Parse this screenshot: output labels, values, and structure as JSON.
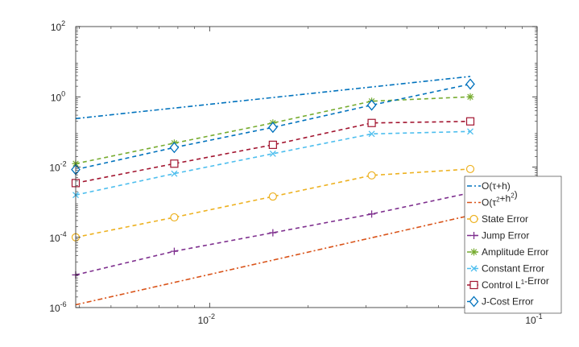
{
  "chart_data": {
    "type": "line",
    "xscale": "log",
    "yscale": "log",
    "xlim": [
      0.0039,
      0.1
    ],
    "ylim": [
      1e-06,
      100
    ],
    "grid": false,
    "legend_position": "bottom-right",
    "x_ticks": [
      {
        "value": 0.01,
        "base": "10",
        "exp": "-2"
      },
      {
        "value": 0.1,
        "base": "10",
        "exp": "-1"
      }
    ],
    "y_ticks": [
      {
        "value": 1e-06,
        "base": "10",
        "exp": "-6"
      },
      {
        "value": 0.0001,
        "base": "10",
        "exp": "-4"
      },
      {
        "value": 0.01,
        "base": "10",
        "exp": "-2"
      },
      {
        "value": 1,
        "base": "10",
        "exp": "0"
      },
      {
        "value": 100,
        "base": "10",
        "exp": "2"
      }
    ],
    "x": [
      0.0039,
      0.0078,
      0.0156,
      0.03125,
      0.0625
    ],
    "series": [
      {
        "name": "O(τ+h)",
        "legend": [
          {
            "t": "O(τ+h)"
          }
        ],
        "color": "#0072bd",
        "dash": "6,3,2,3",
        "marker": "none",
        "x": [
          0.0039,
          0.0625
        ],
        "values": [
          0.24,
          3.8
        ]
      },
      {
        "name": "O(τ²+h²)",
        "legend": [
          {
            "t": "O(τ"
          },
          {
            "t": "2",
            "sup": true
          },
          {
            "t": "+h"
          },
          {
            "t": "2",
            "sup": true
          },
          {
            "t": ")"
          }
        ],
        "color": "#d95319",
        "dash": "6,3,2,3",
        "marker": "none",
        "x": [
          0.0039,
          0.0625
        ],
        "values": [
          1.2e-06,
          0.00042
        ]
      },
      {
        "name": "State Error",
        "legend": [
          {
            "t": "State Error"
          }
        ],
        "color": "#edb120",
        "dash": "5,4",
        "marker": "circle",
        "values": [
          0.0001,
          0.00037,
          0.00145,
          0.0058,
          0.0088
        ]
      },
      {
        "name": "Jump Error",
        "legend": [
          {
            "t": "Jump Error"
          }
        ],
        "color": "#7e2f8e",
        "dash": "5,4",
        "marker": "plus",
        "values": [
          8.5e-06,
          4e-05,
          0.000135,
          0.00046,
          0.00185
        ]
      },
      {
        "name": "Amplitude Error",
        "legend": [
          {
            "t": "Amplitude Error"
          }
        ],
        "color": "#77ac30",
        "dash": "5,4",
        "marker": "star",
        "values": [
          0.0125,
          0.048,
          0.18,
          0.75,
          1.0
        ]
      },
      {
        "name": "Constant Error",
        "legend": [
          {
            "t": "Constant Error"
          }
        ],
        "color": "#4dbeee",
        "dash": "5,4",
        "marker": "x",
        "values": [
          0.0016,
          0.0065,
          0.024,
          0.088,
          0.103
        ]
      },
      {
        "name": "Control L¹-Error",
        "legend": [
          {
            "t": "Control L"
          },
          {
            "t": "1",
            "sup": true
          },
          {
            "t": "-Error"
          }
        ],
        "color": "#a2142f",
        "dash": "5,4",
        "marker": "square",
        "values": [
          0.0035,
          0.0125,
          0.043,
          0.18,
          0.2
        ]
      },
      {
        "name": "J-Cost Error",
        "legend": [
          {
            "t": "J-Cost Error"
          }
        ],
        "color": "#0072bd",
        "dash": "5,4",
        "marker": "diamond",
        "values": [
          0.0085,
          0.036,
          0.135,
          0.58,
          2.3
        ]
      }
    ]
  }
}
